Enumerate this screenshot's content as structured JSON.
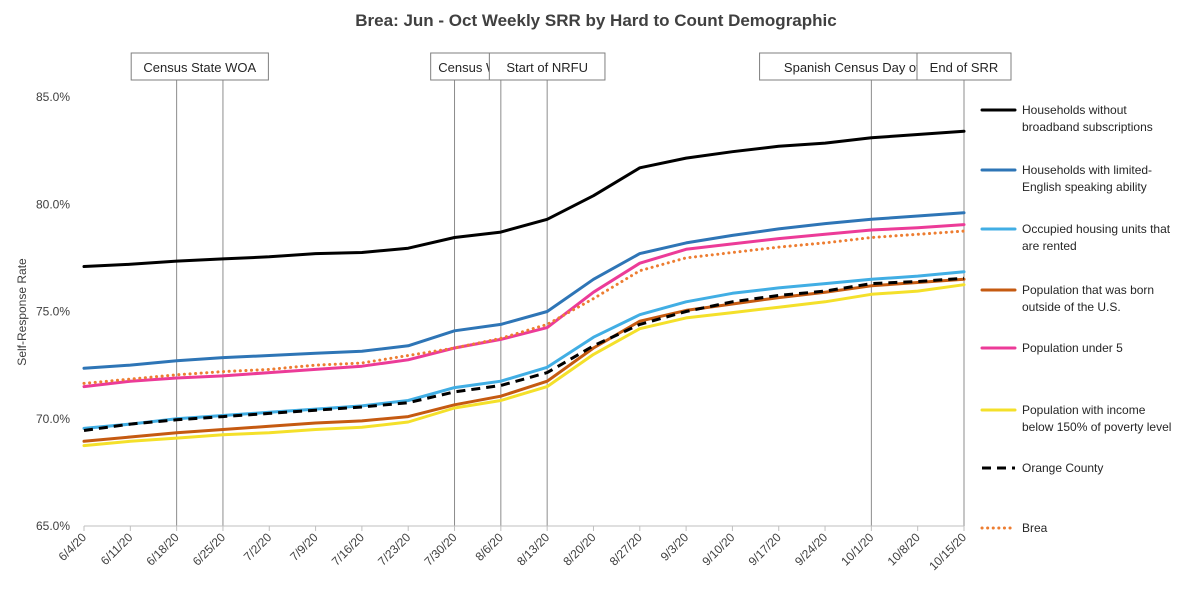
{
  "chart_data": {
    "type": "line",
    "title": "Brea: Jun - Oct Weekly SRR by Hard to Count Demographic",
    "xlabel": "",
    "ylabel": "Self-Response Rate",
    "ylim": [
      65,
      85
    ],
    "yticks": [
      65,
      70,
      75,
      80,
      85
    ],
    "ytick_labels": [
      "65.0%",
      "70.0%",
      "75.0%",
      "80.0%",
      "85.0%"
    ],
    "categories": [
      "6/4/20",
      "6/11/20",
      "6/18/20",
      "6/25/20",
      "7/2/20",
      "7/9/20",
      "7/16/20",
      "7/23/20",
      "7/30/20",
      "8/6/20",
      "8/13/20",
      "8/20/20",
      "8/27/20",
      "9/3/20",
      "9/10/20",
      "9/17/20",
      "9/24/20",
      "10/1/20",
      "10/8/20",
      "10/15/20"
    ],
    "series": [
      {
        "name": "Households without broadband subscriptions",
        "legend_lines": [
          "Households without",
          "broadband subscriptions"
        ],
        "color": "#000000",
        "style": "solid",
        "values": [
          77.1,
          77.2,
          77.35,
          77.45,
          77.55,
          77.7,
          77.75,
          77.95,
          78.45,
          78.7,
          79.3,
          80.4,
          81.7,
          82.15,
          82.45,
          82.7,
          82.85,
          83.1,
          83.25,
          83.4
        ]
      },
      {
        "name": "Households with limited-English speaking ability",
        "legend_lines": [
          "Households with limited-",
          "English speaking ability"
        ],
        "color": "#2e75b6",
        "style": "solid",
        "values": [
          72.35,
          72.5,
          72.7,
          72.85,
          72.95,
          73.05,
          73.15,
          73.4,
          74.1,
          74.4,
          75.0,
          76.5,
          77.7,
          78.2,
          78.55,
          78.85,
          79.1,
          79.3,
          79.45,
          79.6
        ]
      },
      {
        "name": "Occupied housing units that are rented",
        "legend_lines": [
          "Occupied housing units that",
          "are rented"
        ],
        "color": "#41aee4",
        "style": "solid",
        "values": [
          69.55,
          69.75,
          70.0,
          70.15,
          70.3,
          70.45,
          70.6,
          70.85,
          71.45,
          71.75,
          72.4,
          73.8,
          74.85,
          75.45,
          75.85,
          76.1,
          76.3,
          76.5,
          76.65,
          76.85
        ]
      },
      {
        "name": "Population that was born outside of the U.S.",
        "legend_lines": [
          "Population that was born",
          "outside of the U.S."
        ],
        "color": "#c55a11",
        "style": "solid",
        "values": [
          68.95,
          69.15,
          69.35,
          69.5,
          69.65,
          69.8,
          69.9,
          70.1,
          70.65,
          71.05,
          71.75,
          73.3,
          74.55,
          75.05,
          75.35,
          75.65,
          75.9,
          76.2,
          76.35,
          76.5
        ]
      },
      {
        "name": "Population under 5",
        "legend_lines": [
          "Population under 5"
        ],
        "color": "#ec3b98",
        "style": "solid",
        "values": [
          71.5,
          71.75,
          71.9,
          72.0,
          72.15,
          72.3,
          72.45,
          72.75,
          73.3,
          73.7,
          74.25,
          75.9,
          77.25,
          77.9,
          78.15,
          78.4,
          78.6,
          78.8,
          78.9,
          79.05
        ]
      },
      {
        "name": "Population with income below 150% of poverty level",
        "legend_lines": [
          "Population with income",
          "below 150% of poverty level"
        ],
        "color": "#f4e02a",
        "style": "solid",
        "values": [
          68.75,
          68.95,
          69.1,
          69.25,
          69.35,
          69.5,
          69.6,
          69.85,
          70.5,
          70.85,
          71.5,
          73.0,
          74.2,
          74.7,
          74.95,
          75.2,
          75.45,
          75.8,
          75.95,
          76.25
        ]
      },
      {
        "name": "Orange County",
        "legend_lines": [
          "Orange County"
        ],
        "color": "#000000",
        "style": "dashed",
        "values": [
          69.45,
          69.75,
          69.95,
          70.1,
          70.25,
          70.4,
          70.55,
          70.75,
          71.25,
          71.55,
          72.15,
          73.4,
          74.4,
          75.0,
          75.45,
          75.75,
          75.95,
          76.3,
          76.4,
          76.55
        ]
      },
      {
        "name": "Brea",
        "legend_lines": [
          "Brea"
        ],
        "color": "#ed7d31",
        "style": "dotted",
        "values": [
          71.65,
          71.85,
          72.05,
          72.2,
          72.3,
          72.5,
          72.6,
          72.95,
          73.3,
          73.75,
          74.4,
          75.6,
          76.9,
          77.5,
          77.75,
          78.0,
          78.2,
          78.45,
          78.6,
          78.75
        ]
      }
    ],
    "annotations": [
      {
        "label": "Census State WOA",
        "lines_at": [
          2,
          3
        ]
      },
      {
        "label": "Census WOA",
        "lines_at": [
          8,
          9
        ]
      },
      {
        "label": "Start of NRFU",
        "lines_at": [
          10
        ]
      },
      {
        "label": "Spanish Census Day of Action",
        "lines_at": [
          17
        ]
      },
      {
        "label": "End of SRR",
        "lines_at": [
          19
        ]
      }
    ],
    "grid": false,
    "legend_position": "right"
  }
}
